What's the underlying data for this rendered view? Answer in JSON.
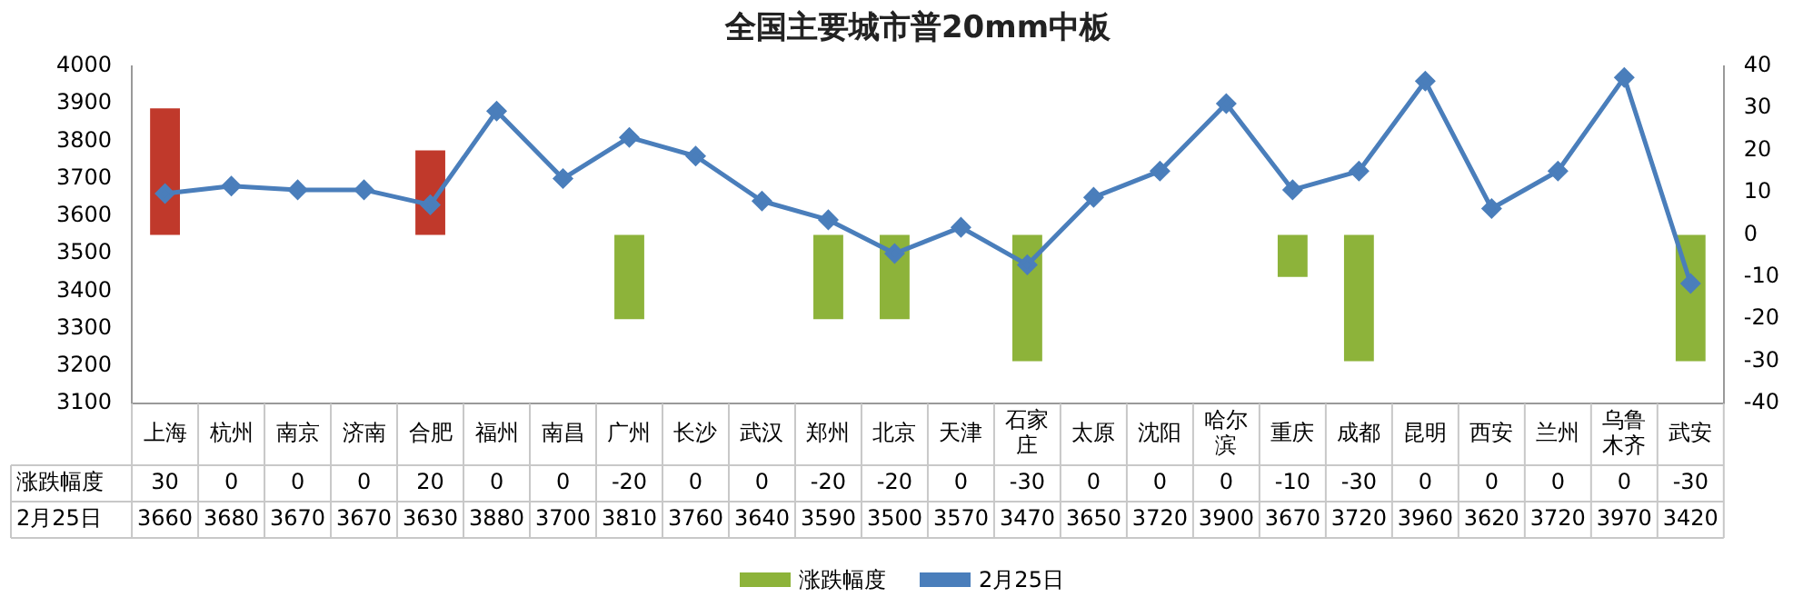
{
  "chart_data": {
    "type": "bar",
    "title": "全国主要城市普20mm中板",
    "categories": [
      "上海",
      "杭州",
      "南京",
      "济南",
      "合肥",
      "福州",
      "南昌",
      "广州",
      "长沙",
      "武汉",
      "郑州",
      "北京",
      "天津",
      "石家庄",
      "太原",
      "沈阳",
      "哈尔滨",
      "重庆",
      "成都",
      "昆明",
      "西安",
      "兰州",
      "乌鲁木齐",
      "武安"
    ],
    "series": [
      {
        "name": "涨跌幅度",
        "axis": "y2",
        "color": "#8db33a",
        "colors": [
          "#c0392b",
          "#8db33a",
          "#8db33a",
          "#8db33a",
          "#c0392b",
          "#8db33a",
          "#8db33a",
          "#8db33a",
          "#8db33a",
          "#8db33a",
          "#8db33a",
          "#8db33a",
          "#8db33a",
          "#8db33a",
          "#8db33a",
          "#8db33a",
          "#8db33a",
          "#8db33a",
          "#8db33a",
          "#8db33a",
          "#8db33a",
          "#8db33a",
          "#8db33a",
          "#8db33a"
        ],
        "values": [
          30,
          0,
          0,
          0,
          20,
          0,
          0,
          -20,
          0,
          0,
          -20,
          -20,
          0,
          -30,
          0,
          0,
          0,
          -10,
          -30,
          0,
          0,
          0,
          0,
          -30
        ]
      },
      {
        "name": "2月25日",
        "type": "line",
        "color": "#4a7ebb",
        "values": [
          3660,
          3680,
          3670,
          3670,
          3630,
          3880,
          3700,
          3810,
          3760,
          3640,
          3590,
          3500,
          3570,
          3470,
          3650,
          3720,
          3900,
          3670,
          3720,
          3960,
          3620,
          3720,
          3970,
          3420
        ]
      }
    ],
    "ylim": [
      3100,
      4000
    ],
    "yticks": [
      3100,
      3200,
      3300,
      3400,
      3500,
      3600,
      3700,
      3800,
      3900,
      4000
    ],
    "y2lim": [
      -40,
      40
    ],
    "y2ticks": [
      -40,
      -30,
      -20,
      -10,
      0,
      10,
      20,
      30,
      40
    ],
    "marker": "diamond",
    "legend": "bottom",
    "grid": false,
    "data_labels": true
  }
}
